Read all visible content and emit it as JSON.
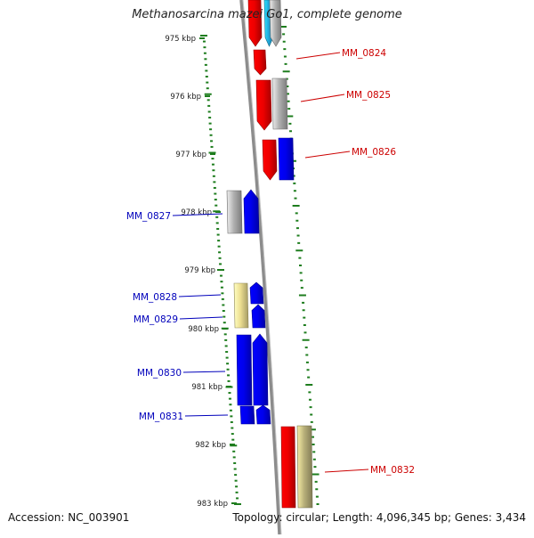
{
  "title": "Methanosarcina mazei Go1, complete genome",
  "accession": "Accession: NC_003901",
  "summary": "Topology: circular; Length: 4,096,345 bp; Genes: 3,434",
  "colors": {
    "backbone": "#8c8c8c",
    "tick": "#1e7d1e",
    "forward_label": "#cc0000",
    "reverse_label": "#0000bb",
    "red_feature": "#ee0000",
    "blue_feature": "#0000ee",
    "gray_feature": "#b0b0b0",
    "cyan_feature": "#22aadd",
    "yellow_feature": "#ecde90",
    "khaki_feature": "#b8b07a"
  },
  "tick_labels": [
    "975 kbp",
    "976 kbp",
    "977 kbp",
    "978 kbp",
    "979 kbp",
    "980 kbp",
    "981 kbp",
    "982 kbp",
    "983 kbp"
  ],
  "gene_labels": {
    "forward": [
      "MM_0824",
      "MM_0825",
      "MM_0826",
      "MM_0832"
    ],
    "reverse": [
      "MM_0827",
      "MM_0828",
      "MM_0829",
      "MM_0830",
      "MM_0831"
    ]
  }
}
